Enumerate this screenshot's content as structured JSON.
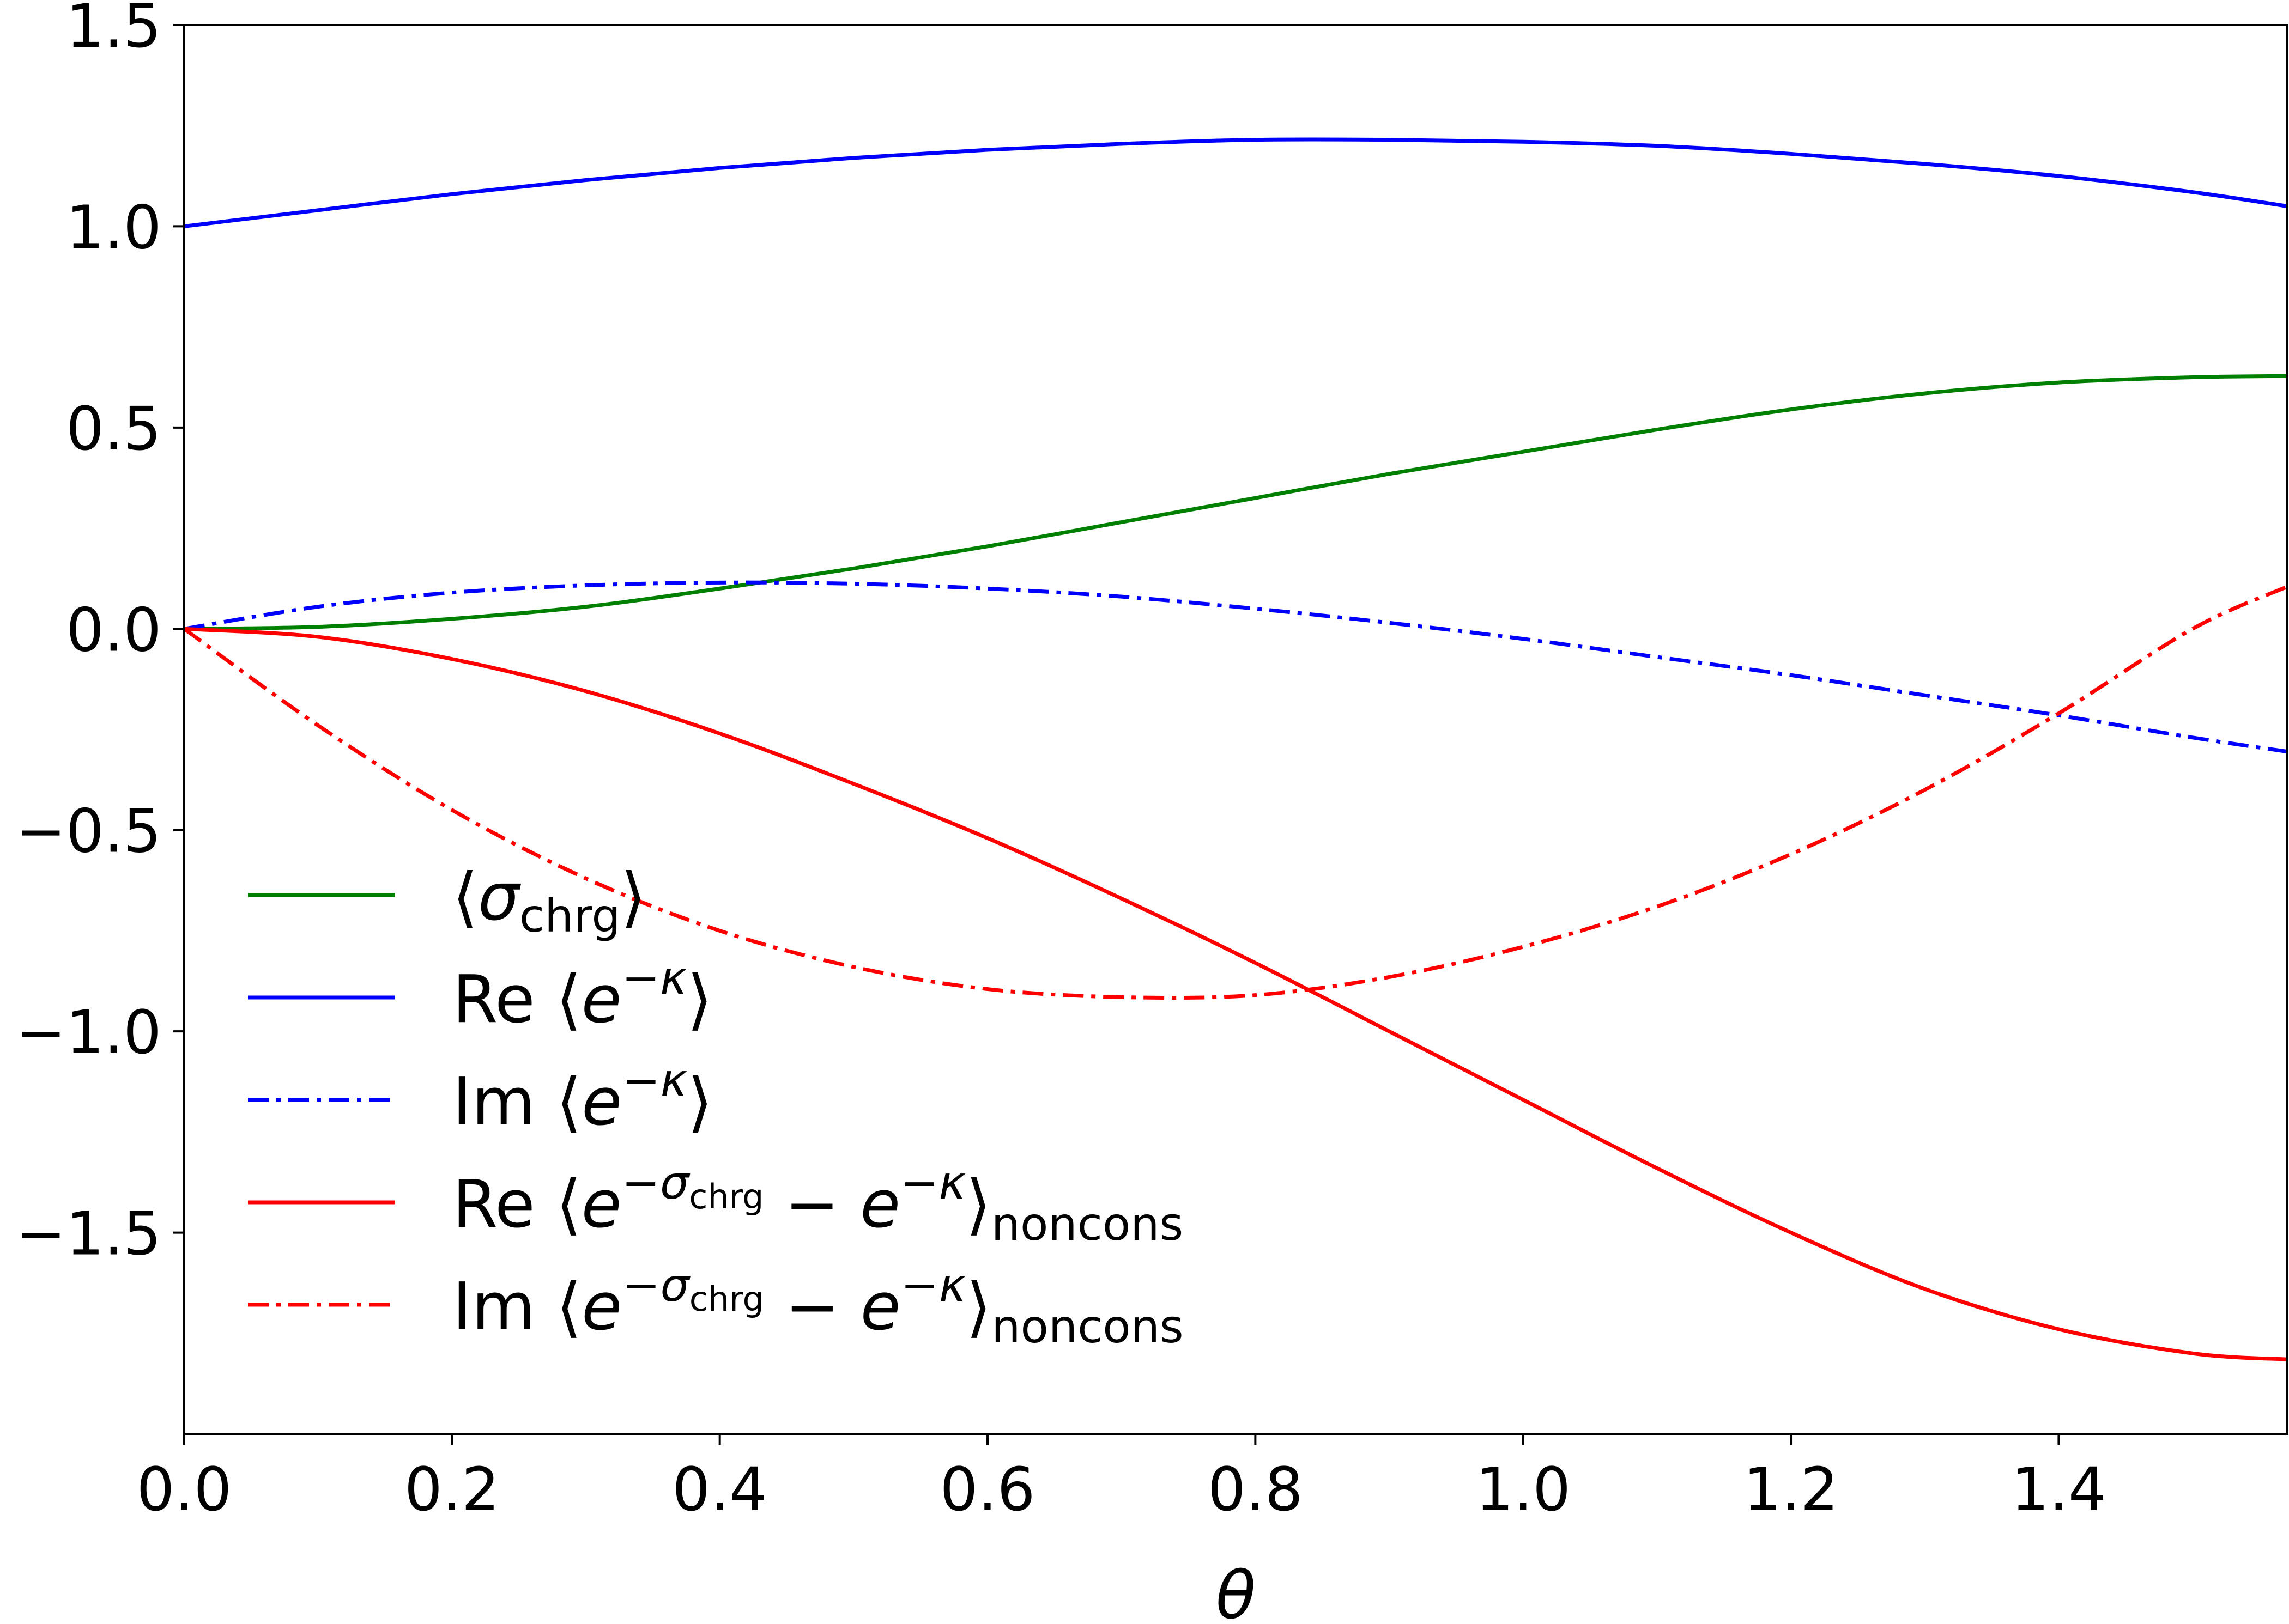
{
  "chart_data": {
    "type": "line",
    "xlabel": "θ",
    "ylabel": "",
    "xlim": [
      0,
      1.5708
    ],
    "ylim": [
      -2.0,
      1.5
    ],
    "grid": false,
    "legend_placement": "lower-left",
    "xticks": [
      "0.0",
      "0.2",
      "0.4",
      "0.6",
      "0.8",
      "1.0",
      "1.2",
      "1.4"
    ],
    "yticks": [
      "1.5",
      "1.0",
      "0.5",
      "0.0",
      "−0.5",
      "−1.0",
      "−1.5"
    ],
    "x": [
      0,
      0.1,
      0.2,
      0.3,
      0.4,
      0.5,
      0.6,
      0.7,
      0.8,
      0.9,
      1.0,
      1.1,
      1.2,
      1.3,
      1.4,
      1.5,
      1.5708
    ],
    "series": [
      {
        "key": "sigma",
        "color": "#008000",
        "dash": "solid",
        "values": [
          0.0,
          0.005,
          0.025,
          0.055,
          0.1,
          0.15,
          0.205,
          0.265,
          0.325,
          0.385,
          0.44,
          0.495,
          0.545,
          0.585,
          0.612,
          0.625,
          0.628
        ]
      },
      {
        "key": "re_ek",
        "color": "#0000ff",
        "dash": "solid",
        "values": [
          1.0,
          1.04,
          1.08,
          1.115,
          1.145,
          1.17,
          1.19,
          1.205,
          1.215,
          1.215,
          1.21,
          1.2,
          1.18,
          1.155,
          1.125,
          1.085,
          1.05
        ]
      },
      {
        "key": "im_ek",
        "color": "#0000ff",
        "dash": "dashdot",
        "values": [
          0.0,
          0.055,
          0.09,
          0.108,
          0.115,
          0.112,
          0.1,
          0.08,
          0.05,
          0.015,
          -0.025,
          -0.07,
          -0.115,
          -0.165,
          -0.215,
          -0.27,
          -0.305
        ]
      },
      {
        "key": "re_diff",
        "color": "#ff0000",
        "dash": "solid",
        "values": [
          0.0,
          -0.02,
          -0.075,
          -0.155,
          -0.26,
          -0.385,
          -0.52,
          -0.67,
          -0.83,
          -1.0,
          -1.17,
          -1.34,
          -1.5,
          -1.64,
          -1.74,
          -1.8,
          -1.815
        ]
      },
      {
        "key": "im_diff",
        "color": "#ff0000",
        "dash": "dashdot",
        "values": [
          0.0,
          -0.24,
          -0.45,
          -0.62,
          -0.75,
          -0.84,
          -0.895,
          -0.915,
          -0.91,
          -0.865,
          -0.79,
          -0.69,
          -0.56,
          -0.4,
          -0.21,
          0.0,
          0.105
        ]
      }
    ]
  },
  "legend": [
    {
      "key": "sigma",
      "color": "#008000",
      "dash": "solid",
      "prefix": "",
      "open": "⟨",
      "sym": "σ",
      "sub": "chrg",
      "close": "⟩"
    },
    {
      "key": "re_ek",
      "color": "#0000ff",
      "dash": "solid",
      "prefix": "Re",
      "open": "⟨",
      "base": "e",
      "sup": "−κ",
      "close": "⟩"
    },
    {
      "key": "im_ek",
      "color": "#0000ff",
      "dash": "dashdot",
      "prefix": "Im",
      "open": "⟨",
      "base": "e",
      "sup": "−κ",
      "close": "⟩"
    },
    {
      "key": "re_diff",
      "color": "#ff0000",
      "dash": "solid",
      "prefix": "Re",
      "open": "⟨",
      "base": "e",
      "sup1": "−σ",
      "supsub": "chrg",
      "minus": "−",
      "base2": "e",
      "sup2": "−κ",
      "close": "⟩",
      "sub": "noncons"
    },
    {
      "key": "im_diff",
      "color": "#ff0000",
      "dash": "dashdot",
      "prefix": "Im",
      "open": "⟨",
      "base": "e",
      "sup1": "−σ",
      "supsub": "chrg",
      "minus": "−",
      "base2": "e",
      "sup2": "−κ",
      "close": "⟩",
      "sub": "noncons"
    }
  ]
}
